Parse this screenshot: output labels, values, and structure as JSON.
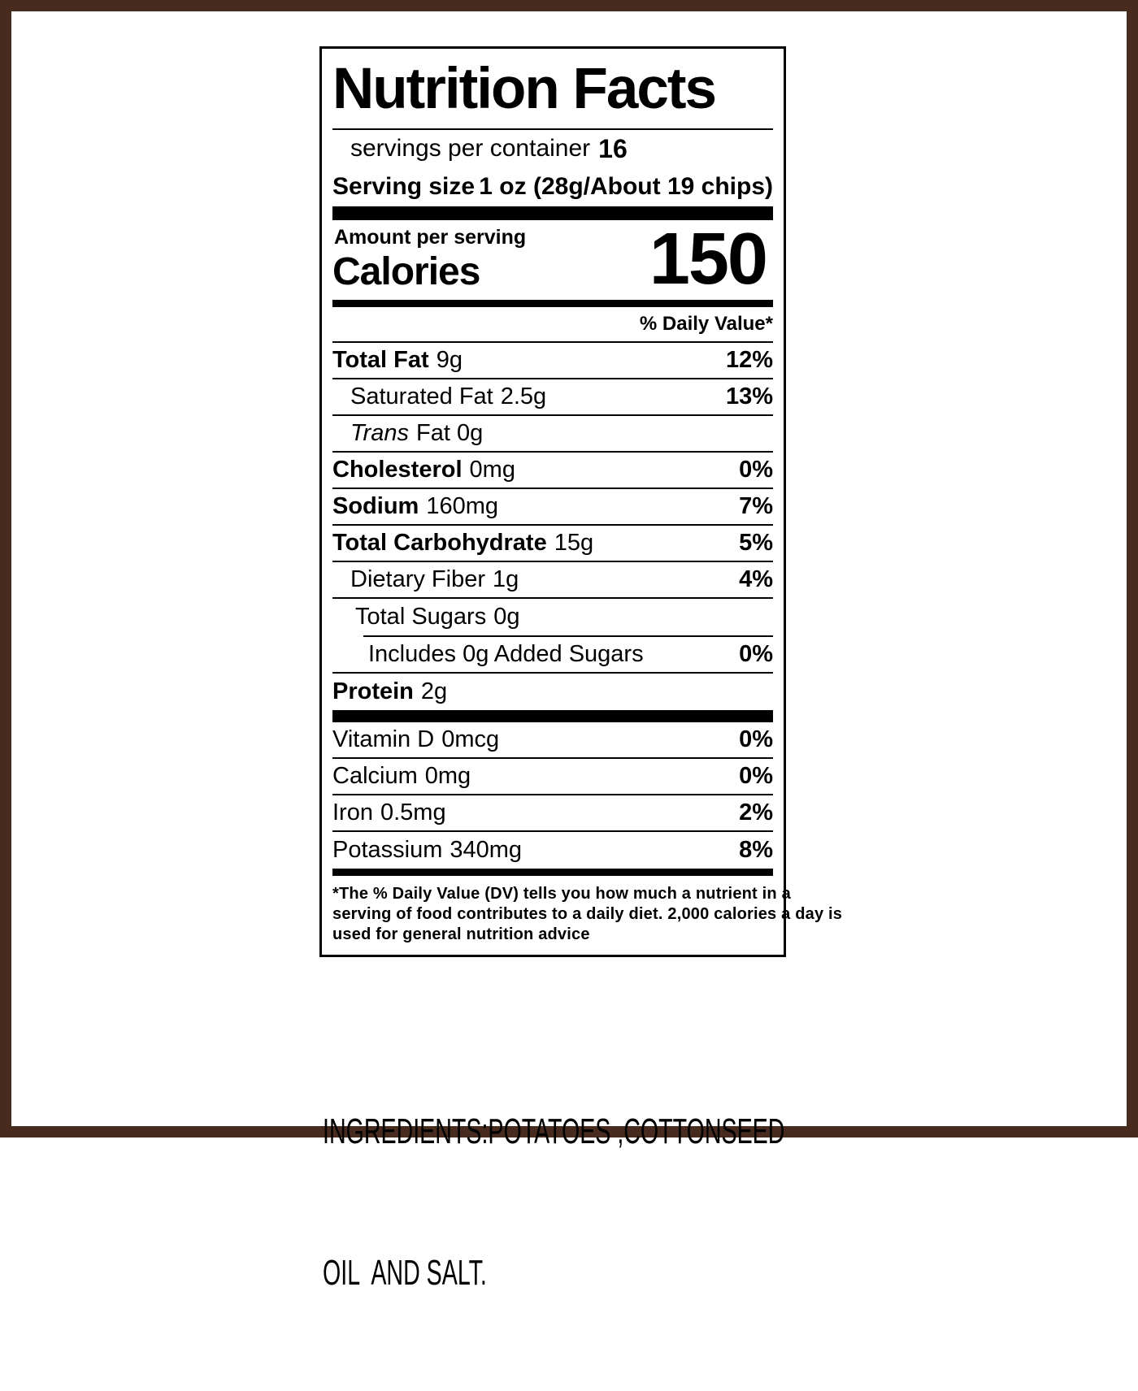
{
  "frame": {
    "color": "#472b1e"
  },
  "label": {
    "title": "Nutrition Facts",
    "servings_line": {
      "text": "servings per container",
      "value": "16"
    },
    "serving_size": {
      "label": "Serving size",
      "value": "1 oz (28g/About 19 chips)"
    },
    "amount_per_serving": "Amount per serving",
    "calories_label": "Calories",
    "calories_value": "150",
    "daily_value_header": "% Daily Value*",
    "nutrients": [
      {
        "name": "Total Fat",
        "amount": "9g",
        "dv": "12%"
      },
      {
        "name": "Saturated Fat",
        "amount": "2.5g",
        "dv": "13%"
      },
      {
        "name": "Trans",
        "amount": "Fat 0g",
        "dv": ""
      },
      {
        "name": "Cholesterol",
        "amount": "0mg",
        "dv": "0%"
      },
      {
        "name": "Sodium",
        "amount": "160mg",
        "dv": "7%"
      },
      {
        "name": "Total Carbohydrate",
        "amount": "15g",
        "dv": "5%"
      },
      {
        "name": "Dietary Fiber",
        "amount": "1g",
        "dv": "4%"
      },
      {
        "name": "Total Sugars",
        "amount": "0g",
        "dv": ""
      },
      {
        "name": "Includes 0g Added Sugars",
        "amount": "",
        "dv": "0%"
      },
      {
        "name": "Protein",
        "amount": "2g",
        "dv": ""
      }
    ],
    "micronutrients": [
      {
        "name": "Vitamin D",
        "amount": "0mcg",
        "dv": "0%"
      },
      {
        "name": "Calcium",
        "amount": "0mg",
        "dv": "0%"
      },
      {
        "name": "Iron",
        "amount": "0.5mg",
        "dv": "2%"
      },
      {
        "name": "Potassium",
        "amount": "340mg",
        "dv": "8%"
      }
    ],
    "footnote_lines": [
      "*The % Daily Value (DV) tells you how much a nutrient in a",
      "serving of food contributes to a daily diet. 2,000 calories a day is",
      "used for general nutrition advice"
    ]
  },
  "ingredients": {
    "line1": "INGREDIENTS:POTATOES ,COTTONSEED",
    "line2": "OIL  AND SALT."
  }
}
